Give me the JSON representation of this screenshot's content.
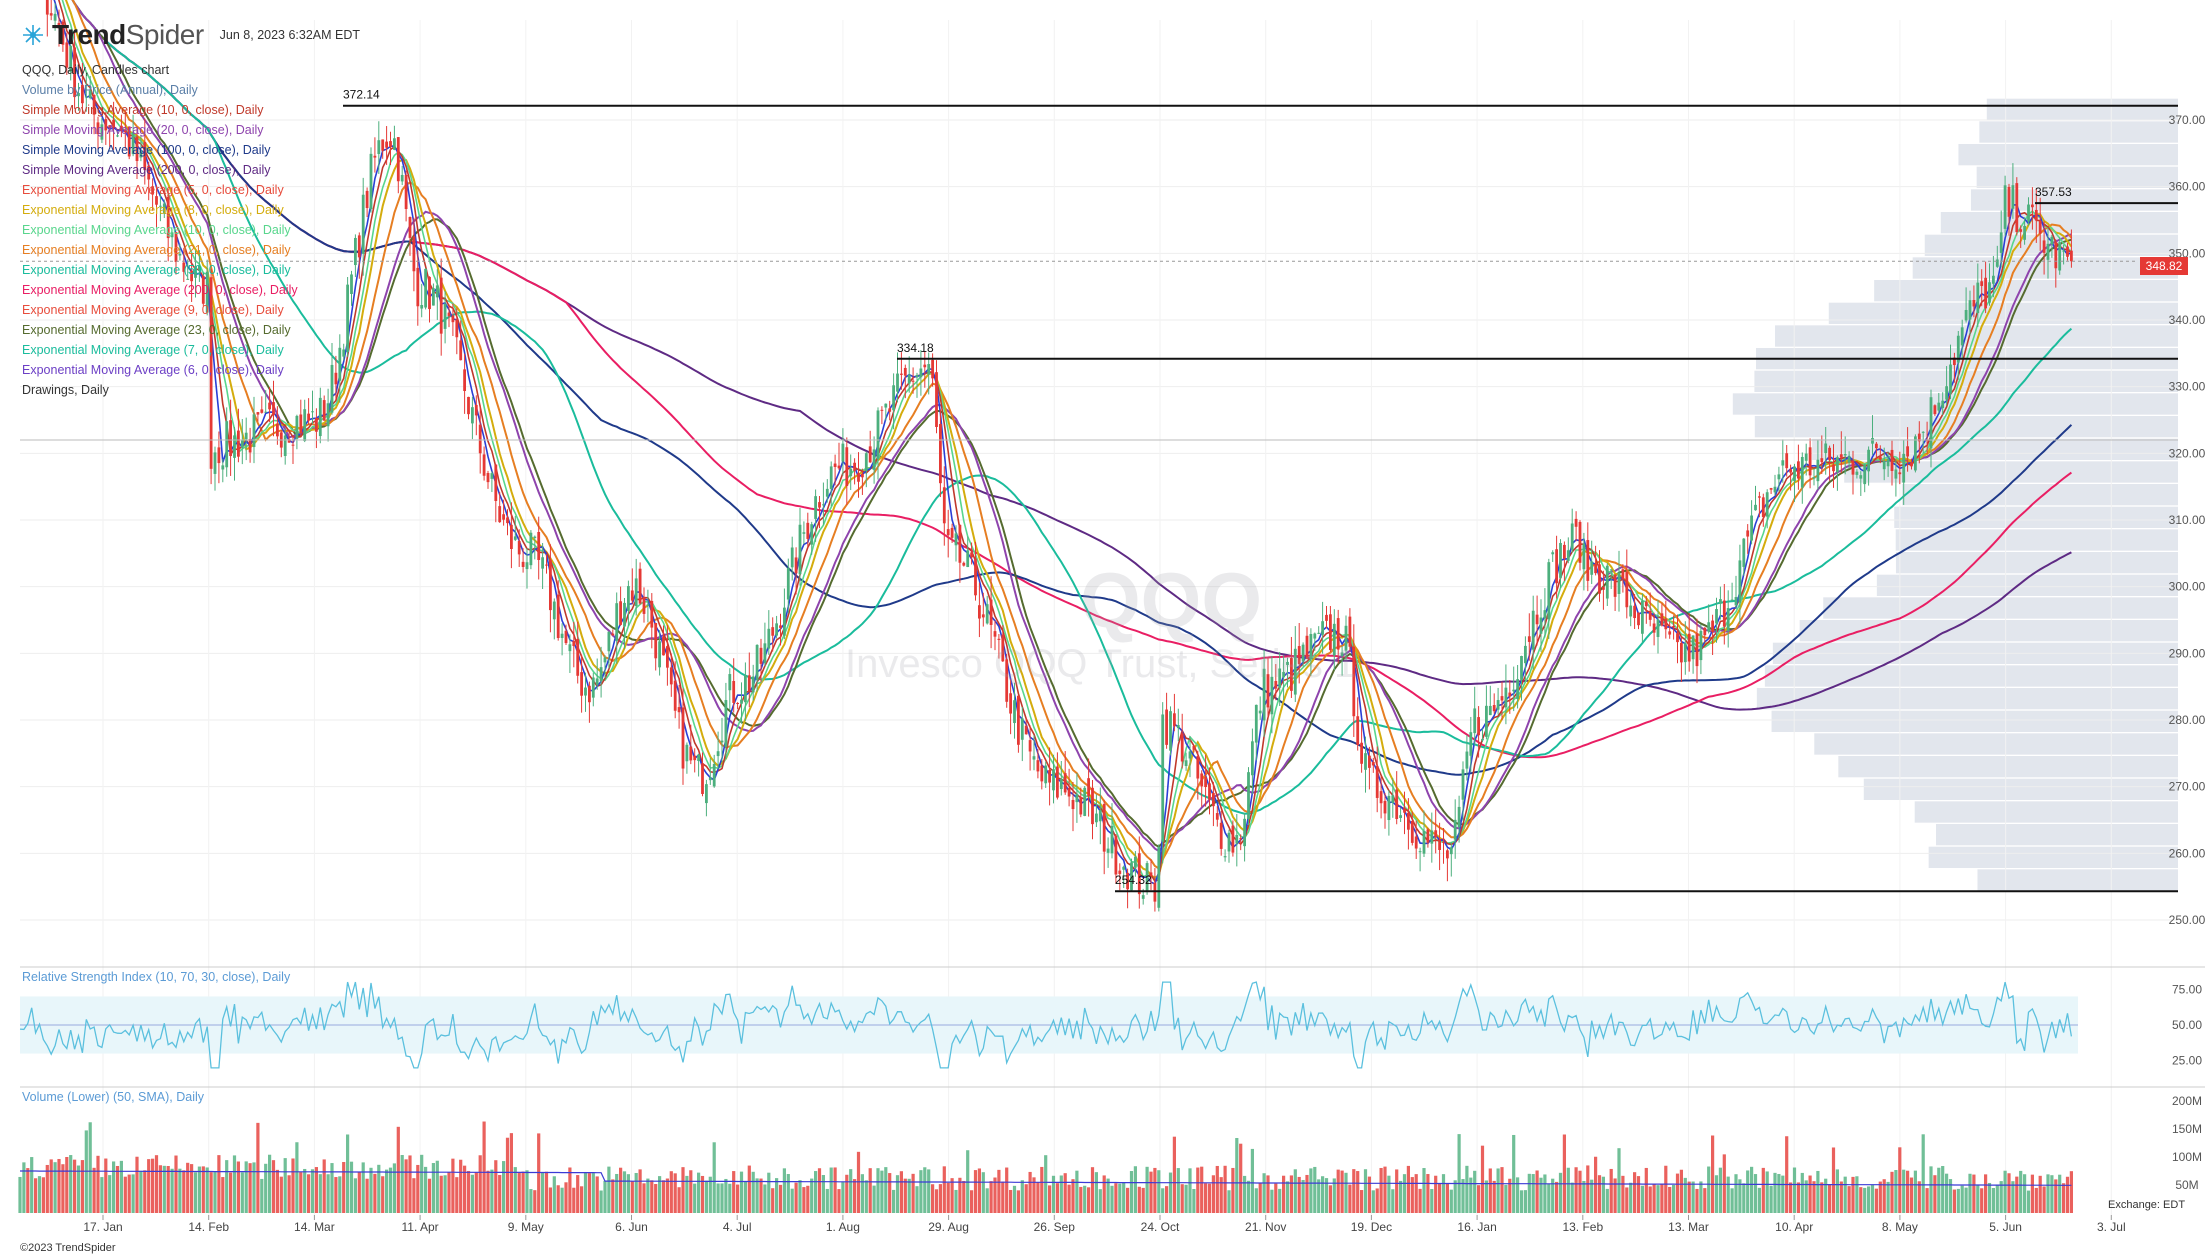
{
  "header": {
    "brand_main": "Trend",
    "brand_tail": "Spider",
    "timestamp": "Jun 8, 2023 6:32AM EDT"
  },
  "legend": [
    {
      "label": "QQQ, Daily, Candles chart",
      "color": "#333333"
    },
    {
      "label": "Volume by Price (Annual), Daily",
      "color": "#5b7fa8"
    },
    {
      "label": "Simple Moving Average (10, 0, close), Daily",
      "color": "#c0392b"
    },
    {
      "label": "Simple Moving Average (20, 0, close), Daily",
      "color": "#8e44ad"
    },
    {
      "label": "Simple Moving Average (100, 0, close), Daily",
      "color": "#1f3a8a"
    },
    {
      "label": "Simple Moving Average (200, 0, close), Daily",
      "color": "#5e2a84"
    },
    {
      "label": "Exponential Moving Average (5, 0, close), Daily",
      "color": "#e74c3c"
    },
    {
      "label": "Exponential Moving Average (8, 0, close), Daily",
      "color": "#d4ac0d"
    },
    {
      "label": "Exponential Moving Average (10, 0, close), Daily",
      "color": "#58d68d"
    },
    {
      "label": "Exponential Moving Average (21, 0, close), Daily",
      "color": "#e67e22"
    },
    {
      "label": "Exponential Moving Average (50, 0, close), Daily",
      "color": "#1abc9c"
    },
    {
      "label": "Exponential Moving Average (200, 0, close), Daily",
      "color": "#e91e63"
    },
    {
      "label": "Exponential Moving Average (9, 0, close), Daily",
      "color": "#e74c3c"
    },
    {
      "label": "Exponential Moving Average (23, 0, close), Daily",
      "color": "#556b2f"
    },
    {
      "label": "Exponential Moving Average (7, 0, close), Daily",
      "color": "#1abc9c"
    },
    {
      "label": "Exponential Moving Average (6, 0, close), Daily",
      "color": "#6c3fc5"
    },
    {
      "label": "Drawings, Daily",
      "color": "#333333"
    }
  ],
  "watermark": {
    "ticker": "QQQ",
    "name": "Invesco QQQ Trust, Series 1"
  },
  "last_price": "348.82",
  "panes": {
    "rsi_label": "Relative Strength Index (10, 70, 30, close), Daily",
    "volume_label": "Volume (Lower) (50, SMA), Daily"
  },
  "footer": {
    "copyright": "©2023 TrendSpider",
    "exchange": "Exchange: EDT"
  },
  "colors": {
    "up": "#4caf7d",
    "down": "#e53935",
    "level_line": "#111111",
    "rsi_line": "#5bc0de",
    "rsi_band": "#e8f6fa",
    "vbp": "#dde2ea"
  },
  "chart_data": {
    "type": "candlestick",
    "symbol": "QQQ",
    "interval": "Daily",
    "x_ticks": [
      "17. Jan",
      "14. Feb",
      "14. Mar",
      "11. Apr",
      "9. May",
      "6. Jun",
      "4. Jul",
      "1. Aug",
      "29. Aug",
      "26. Sep",
      "24. Oct",
      "21. Nov",
      "19. Dec",
      "16. Jan",
      "13. Feb",
      "13. Mar",
      "10. Apr",
      "8. May",
      "5. Jun",
      "3. Jul"
    ],
    "y_ticks": [
      "370.00",
      "360.00",
      "350.00",
      "340.00",
      "330.00",
      "320.00",
      "310.00",
      "300.00",
      "290.00",
      "280.00",
      "270.00",
      "260.00",
      "250.00"
    ],
    "ylim": [
      246,
      376
    ],
    "levels": [
      {
        "label": "372.14",
        "value": 372.14,
        "start": "Mar 2022"
      },
      {
        "label": "357.53",
        "value": 357.53,
        "start": "May 2023"
      },
      {
        "label": "334.18",
        "value": 334.18,
        "start": "Aug 2022"
      },
      {
        "label": "254.32",
        "value": 254.32,
        "start": "Oct 2022"
      }
    ],
    "key_points": [
      [
        "Dec 2021",
        395
      ],
      [
        "17. Jan",
        370
      ],
      [
        "14. Feb",
        345
      ],
      [
        "24. Feb",
        320
      ],
      [
        "14. Mar",
        325
      ],
      [
        "29. Mar",
        368
      ],
      [
        "11. Apr",
        345
      ],
      [
        "9. May",
        305
      ],
      [
        "20. May",
        285
      ],
      [
        "6. Jun",
        300
      ],
      [
        "16. Jun",
        272
      ],
      [
        "4. Jul",
        285
      ],
      [
        "1. Aug",
        318
      ],
      [
        "16. Aug",
        333
      ],
      [
        "29. Aug",
        305
      ],
      [
        "26. Sep",
        270
      ],
      [
        "13. Oct",
        255
      ],
      [
        "24. Oct",
        280
      ],
      [
        "3. Nov",
        262
      ],
      [
        "21. Nov",
        285
      ],
      [
        "1. Dec",
        293
      ],
      [
        "19. Dec",
        270
      ],
      [
        "28. Dec",
        260
      ],
      [
        "16. Jan",
        280
      ],
      [
        "2. Feb",
        307
      ],
      [
        "13. Feb",
        303
      ],
      [
        "13. Mar",
        290
      ],
      [
        "10. Apr",
        318
      ],
      [
        "8. May",
        320
      ],
      [
        "25. May",
        345
      ],
      [
        "5. Jun",
        357
      ],
      [
        "7. Jun",
        348.82
      ]
    ],
    "volume_by_price_note": "Annual profile, widest near 280-290 and 320-350",
    "rsi": {
      "label": "Relative Strength Index (10, 70, 30, close), Daily",
      "ticks": [
        "75.00",
        "50.00",
        "25.00"
      ],
      "band": [
        30,
        70
      ]
    },
    "volume": {
      "label": "Volume (Lower) (50, SMA), Daily",
      "ticks": [
        "200M",
        "150M",
        "100M",
        "50M"
      ]
    }
  }
}
